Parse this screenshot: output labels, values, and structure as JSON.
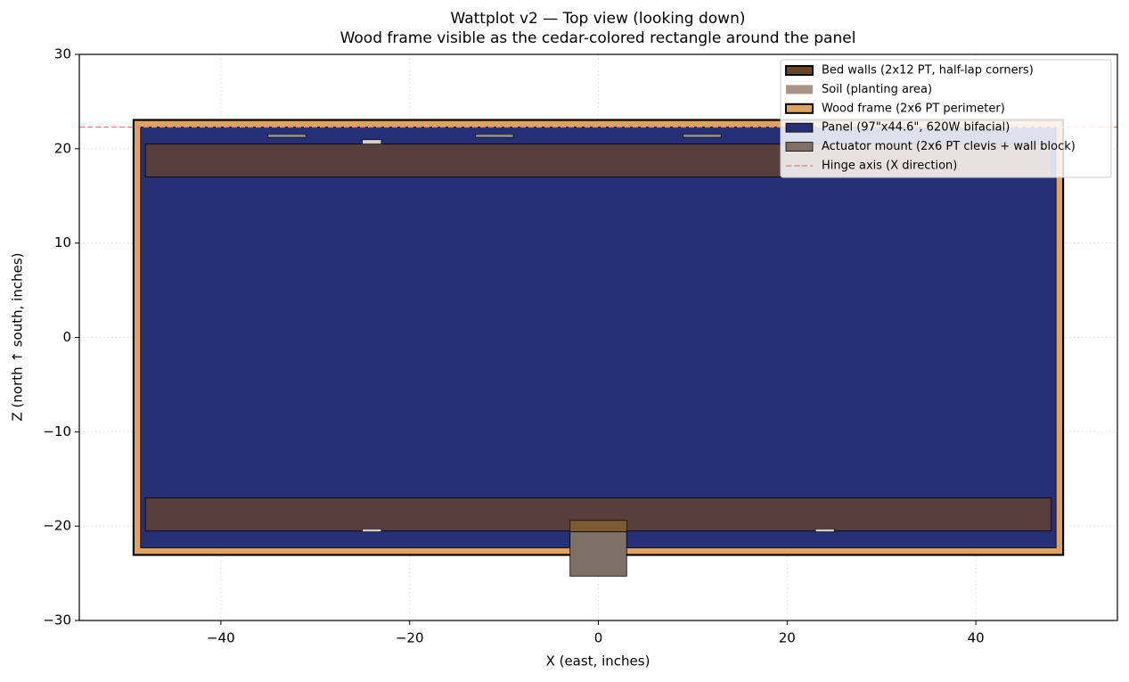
{
  "chart_data": {
    "type": "rects",
    "title": "Wattplot v2 — Top view (looking down)",
    "subtitle": "Wood frame visible as the cedar-colored rectangle around the panel",
    "x_label": "X (east, inches)",
    "y_label": "Z (north ↑ south, inches)",
    "xlim": [
      -55,
      55
    ],
    "ylim": [
      -30,
      30
    ],
    "xticks": [
      {
        "value": -40,
        "label": "−40"
      },
      {
        "value": -20,
        "label": "−20"
      },
      0,
      20,
      40
    ],
    "yticks": [
      {
        "value": -30,
        "label": "−30"
      },
      {
        "value": -20,
        "label": "−20"
      },
      {
        "value": -10,
        "label": "−10"
      },
      0,
      10,
      20,
      30
    ],
    "grid": true,
    "legend": "upper right",
    "series": [
      {
        "name": "Bed walls (2x12 PT, half-lap corners)",
        "kind": "rect",
        "color": "#6b4423",
        "alpha": 0.7,
        "rects": [
          [
            -48,
            17,
            96,
            3.5
          ],
          [
            -48,
            -20.5,
            96,
            3.5
          ]
        ]
      },
      {
        "name": "Soil (planting area)",
        "kind": "rect",
        "color": "#a89484",
        "rects": []
      },
      {
        "name": "Wood frame (2x6 PT perimeter)",
        "kind": "rect",
        "color": "#e0a35e",
        "rects": [
          [
            -49.25,
            -23.05,
            98.5,
            46.1
          ]
        ]
      },
      {
        "name": "Panel (97\"x44.6\", 620W bifacial)",
        "kind": "rect",
        "color": "#263077",
        "rects": [
          [
            -48.5,
            -22.3,
            97,
            44.6
          ]
        ]
      },
      {
        "name": "Actuator mount (2x6 PT clevis + wall block)",
        "kind": "rect",
        "color": "#7f7065",
        "rects": [
          [
            -3,
            -25.3,
            6,
            4.7
          ]
        ]
      },
      {
        "name": "Hinge axis (X direction)",
        "kind": "hline",
        "color": "#f08070",
        "y": 22.3
      }
    ],
    "shapes": [
      {
        "color": "#8a8a8a",
        "rects": [
          [
            -35,
            21.2,
            4,
            0.35
          ],
          [
            -13,
            21.2,
            4,
            0.35
          ],
          [
            9,
            21.2,
            4,
            0.35
          ]
        ]
      },
      {
        "color": "#d8d0c8",
        "rects": [
          [
            -25,
            20.5,
            2,
            0.45
          ],
          [
            -25,
            -20.6,
            2,
            0.3
          ],
          [
            23,
            -20.6,
            2,
            0.3
          ]
        ]
      },
      {
        "color": "#7a5a30",
        "rects": [
          [
            -3,
            -20.6,
            6,
            1.2
          ]
        ]
      }
    ]
  }
}
